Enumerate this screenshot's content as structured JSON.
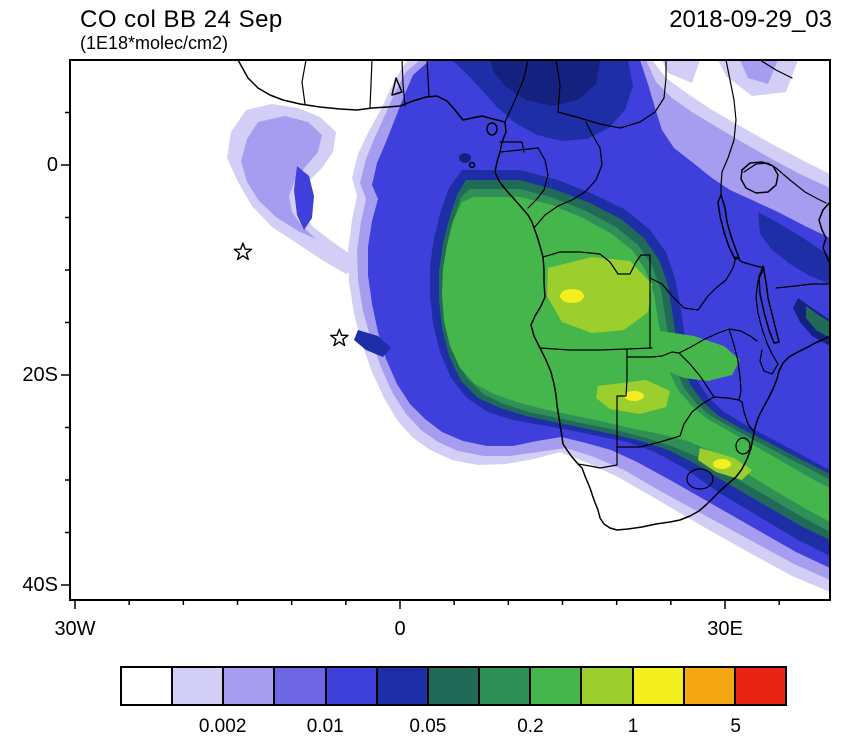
{
  "header": {
    "title": "CO col BB 24 Sep",
    "units": "(1E18*molec/cm2)",
    "date": "2018-09-29_03"
  },
  "axes": {
    "y_ticks": [
      "0",
      "20S",
      "40S"
    ],
    "x_ticks": [
      "30W",
      "0",
      "30E"
    ]
  },
  "colorbar": {
    "labels": [
      "0.002",
      "0.01",
      "0.05",
      "0.2",
      "1",
      "5"
    ],
    "label_boundary_indices": [
      2,
      4,
      6,
      8,
      10,
      12
    ],
    "colors": [
      "#ffffff",
      "#d3cef5",
      "#a79df0",
      "#6f66e4",
      "#3f3fdc",
      "#1d2ea6",
      "#216a58",
      "#2e8f57",
      "#45b64b",
      "#9ccf2e",
      "#f4f020",
      "#f5a713",
      "#ea2412"
    ]
  },
  "map": {
    "palette": {
      "lavender": "#d3cef5",
      "purple": "#a79df0",
      "violet": "#6f66e4",
      "blue": "#3f3fdc",
      "navy": "#1d2ea6",
      "deepnavy": "#15217e",
      "teal": "#216a58",
      "seagreen": "#2e8f57",
      "green": "#45b64b",
      "lightgreen": "#9ccf2e",
      "yellow": "#f4f020"
    },
    "markers": [
      {
        "lon": -14.5,
        "lat": -8.3
      },
      {
        "lon": -5.6,
        "lat": -16.5
      }
    ]
  },
  "chart_data": {
    "type": "heatmap",
    "subtype": "filled-contour-map",
    "title": "CO col BB 24 Sep",
    "units": "1E18*molec/cm2",
    "timestamp": "2018-09-29_03",
    "x_axis": {
      "tick_labels": [
        "30W",
        "0",
        "30E"
      ],
      "approx_range_deg_lon": [
        -30.5,
        39.7
      ]
    },
    "y_axis": {
      "tick_labels": [
        "0",
        "20S",
        "40S"
      ],
      "approx_range_deg_lat": [
        10,
        -40.5
      ]
    },
    "colorbar": {
      "labeled_levels": [
        0.002,
        0.01,
        0.05,
        0.2,
        1,
        5
      ],
      "n_boxes": 13,
      "colors": [
        "#ffffff",
        "#d3cef5",
        "#a79df0",
        "#6f66e4",
        "#3f3fdc",
        "#1d2ea6",
        "#216a58",
        "#2e8f57",
        "#45b64b",
        "#9ccf2e",
        "#f4f020",
        "#f5a713",
        "#ea2412"
      ]
    },
    "features": [
      "Large CO plume (>0.2) over Angola, Zambia, southern DRC extending west over the South Atlantic",
      "Maximum patches (>0.5-1) over eastern Angola / Zambia",
      "Plume band extending southeast across Mozambique toward the bottom-right of the domain",
      "Secondary purple/blue plume over the northwest Atlantic area and over the Gulf of Guinea",
      "Two star markers over the Atlantic ocean"
    ],
    "markers_lon_lat": [
      [
        -14.5,
        -8.3
      ],
      [
        -5.6,
        -16.5
      ]
    ],
    "legend_position": "bottom",
    "grid": false
  }
}
